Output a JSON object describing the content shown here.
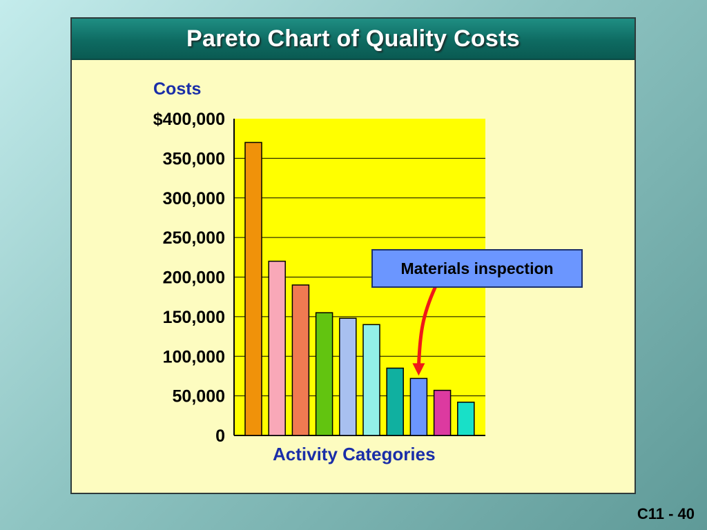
{
  "slide": {
    "title": "Pareto Chart of Quality Costs",
    "number": "C11 - 40"
  },
  "chart_data": {
    "type": "bar",
    "ylabel": "Costs",
    "xlabel": "Activity Categories",
    "ylim": [
      0,
      400000
    ],
    "yticks": [
      {
        "value": 0,
        "label": "0"
      },
      {
        "value": 50000,
        "label": "50,000"
      },
      {
        "value": 100000,
        "label": "100,000"
      },
      {
        "value": 150000,
        "label": "150,000"
      },
      {
        "value": 200000,
        "label": "200,000"
      },
      {
        "value": 250000,
        "label": "250,000"
      },
      {
        "value": 300000,
        "label": "300,000"
      },
      {
        "value": 350000,
        "label": "350,000"
      },
      {
        "value": 400000,
        "label": "$400,000"
      }
    ],
    "values": [
      370000,
      220000,
      190000,
      155000,
      148000,
      140000,
      85000,
      72000,
      57000,
      42000
    ],
    "colors": [
      "#f0920a",
      "#f9a8b8",
      "#f07a52",
      "#62c410",
      "#a8c0f0",
      "#92f0e8",
      "#10b0a0",
      "#6b96ff",
      "#dc3aa0",
      "#18e0c8"
    ],
    "plot_background": "#ffff00",
    "grid": true,
    "annotation": {
      "text": "Materials inspection",
      "target_index": 7,
      "arrow_color": "#f01818"
    }
  }
}
